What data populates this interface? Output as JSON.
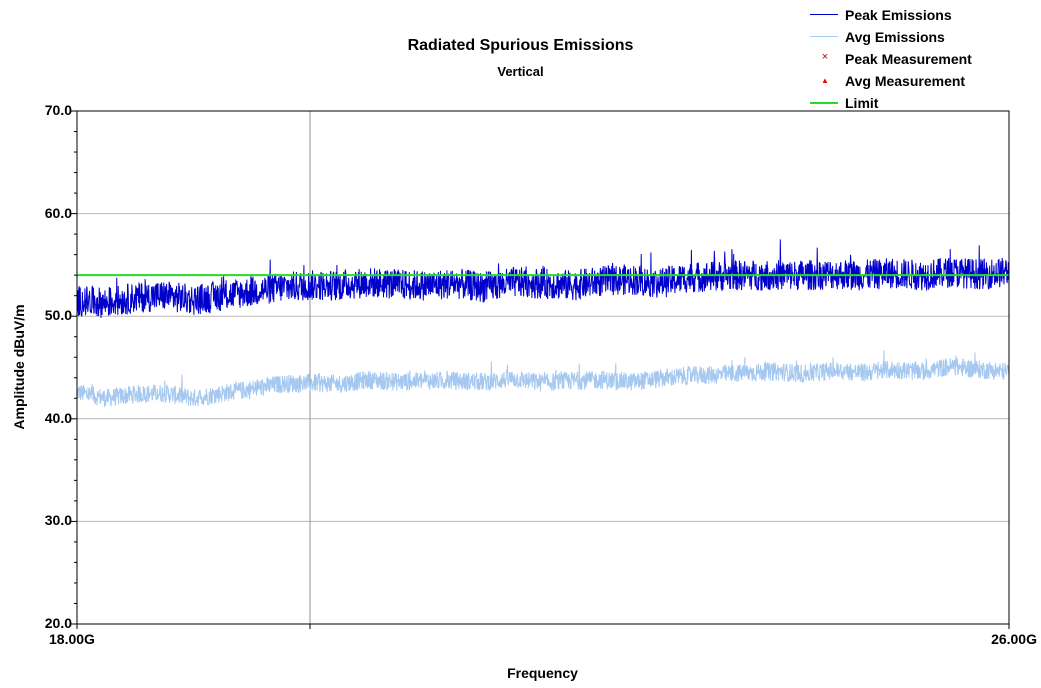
{
  "chart_data": {
    "type": "line",
    "title": "Radiated Spurious Emissions",
    "subtitle": "Vertical",
    "xlabel": "Frequency",
    "ylabel": "Amplitude dBuV/m",
    "xlim": [
      18.0,
      26.0
    ],
    "ylim": [
      20.0,
      70.0
    ],
    "y_ticks": [
      "20.0",
      "30.0",
      "40.0",
      "50.0",
      "60.0",
      "70.0"
    ],
    "x_tick_labels": [
      {
        "value": 18.0,
        "label": "18.00G"
      },
      {
        "value": 26.0,
        "label": "26.00G"
      }
    ],
    "grid": true,
    "legend_position": "top-right",
    "series": [
      {
        "name": "Peak Emissions",
        "color": "#0000cc",
        "style": "line",
        "x": [
          18.0,
          18.25,
          18.5,
          18.75,
          19.0,
          19.25,
          19.5,
          19.75,
          20.0,
          20.25,
          20.5,
          20.75,
          21.0,
          21.25,
          21.5,
          21.75,
          22.0,
          22.25,
          22.5,
          22.75,
          23.0,
          23.25,
          23.5,
          23.75,
          24.0,
          24.25,
          24.5,
          24.75,
          25.0,
          25.25,
          25.5,
          25.75,
          26.0
        ],
        "values": [
          51.5,
          51.3,
          51.8,
          52.0,
          51.6,
          52.0,
          52.4,
          52.8,
          53.0,
          53.0,
          53.3,
          53.1,
          53.0,
          53.2,
          52.8,
          53.3,
          53.2,
          53.0,
          53.4,
          53.6,
          53.2,
          53.8,
          53.9,
          54.0,
          54.0,
          54.0,
          54.1,
          54.0,
          54.2,
          54.0,
          54.3,
          54.1,
          54.3
        ]
      },
      {
        "name": "Avg Emissions",
        "color": "#a4c8f0",
        "style": "line",
        "x": [
          18.0,
          18.25,
          18.5,
          18.75,
          19.0,
          19.25,
          19.5,
          19.75,
          20.0,
          20.25,
          20.5,
          20.75,
          21.0,
          21.25,
          21.5,
          21.75,
          22.0,
          22.25,
          22.5,
          22.75,
          23.0,
          23.25,
          23.5,
          23.75,
          24.0,
          24.25,
          24.5,
          24.75,
          25.0,
          25.25,
          25.5,
          25.75,
          26.0
        ],
        "values": [
          42.6,
          42.0,
          42.4,
          42.5,
          42.0,
          42.5,
          42.9,
          43.4,
          43.5,
          43.4,
          43.8,
          43.6,
          43.7,
          43.7,
          43.6,
          43.9,
          43.5,
          43.7,
          43.8,
          43.6,
          43.9,
          44.2,
          44.3,
          44.5,
          44.6,
          44.4,
          44.7,
          44.5,
          44.8,
          44.6,
          45.1,
          44.8,
          44.6
        ]
      },
      {
        "name": "Peak Measurement",
        "color": "#cc0000",
        "style": "marker-x",
        "x": [],
        "values": []
      },
      {
        "name": "Avg Measurement",
        "color": "#ff0000",
        "style": "marker-triangle",
        "x": [],
        "values": []
      },
      {
        "name": "Limit",
        "color": "#22dd22",
        "style": "line",
        "x": [
          18.0,
          26.0
        ],
        "values": [
          54.0,
          54.0
        ]
      }
    ]
  }
}
